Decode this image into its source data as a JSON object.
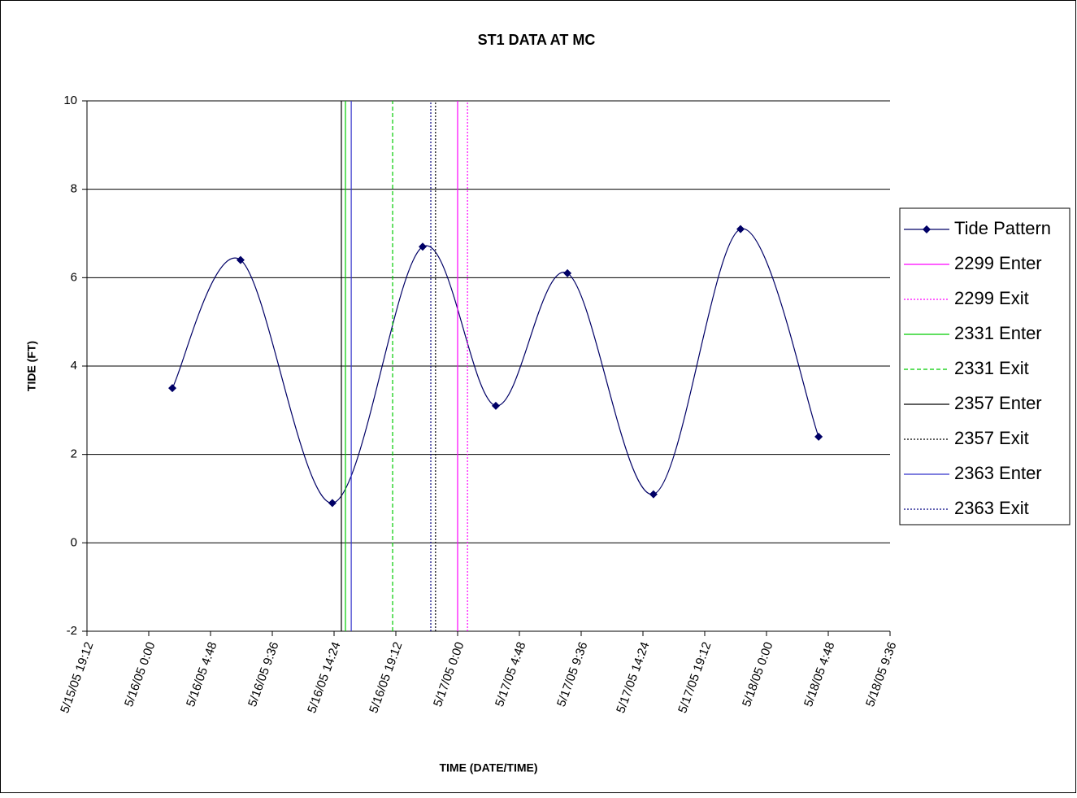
{
  "chart_data": {
    "type": "line",
    "title": "ST1 DATA AT MC",
    "x_label": "TIME (DATE/TIME)",
    "y_label": "TIDE (FT)",
    "xlim": [
      "5/15/05 19:12",
      "5/18/05 9:36"
    ],
    "xticks": [
      "5/15/05 19:12",
      "5/16/05 0:00",
      "5/16/05 4:48",
      "5/16/05 9:36",
      "5/16/05 14:24",
      "5/16/05 19:12",
      "5/17/05 0:00",
      "5/17/05 4:48",
      "5/17/05 9:36",
      "5/17/05 14:24",
      "5/17/05 19:12",
      "5/18/05 0:00",
      "5/18/05 4:48",
      "5/18/05 9:36"
    ],
    "ylim": [
      -2,
      10
    ],
    "yticks": [
      -2,
      0,
      2,
      4,
      6,
      8,
      10
    ],
    "grid": true,
    "series": [
      {
        "name": "Tide Pattern",
        "color": "#000066",
        "dash": "solid",
        "marker": "diamond",
        "smooth": true,
        "x": [
          "5/16/05 1:50",
          "5/16/05 7:08",
          "5/16/05 14:16",
          "5/16/05 21:17",
          "5/17/05 2:58",
          "5/17/05 8:32",
          "5/17/05 15:13",
          "5/17/05 21:59",
          "5/18/05 4:03"
        ],
        "values": [
          3.5,
          6.4,
          0.9,
          6.7,
          3.1,
          6.1,
          1.1,
          7.1,
          2.4
        ]
      },
      {
        "name": "2299 Enter",
        "color": "#ff00ff",
        "dash": "solid",
        "x": [
          "5/17/05 0:00",
          "5/17/05 0:00"
        ],
        "values": [
          -2,
          10
        ]
      },
      {
        "name": "2299 Exit",
        "color": "#ff00ff",
        "dash": "dotted",
        "x": [
          "5/17/05 0:46",
          "5/17/05 0:46"
        ],
        "values": [
          -2,
          10
        ]
      },
      {
        "name": "2331 Enter",
        "color": "#00cc00",
        "dash": "solid",
        "x": [
          "5/16/05 15:17",
          "5/16/05 15:17"
        ],
        "values": [
          -2,
          10
        ]
      },
      {
        "name": "2331 Exit",
        "color": "#00cc00",
        "dash": "dashed",
        "x": [
          "5/16/05 18:57",
          "5/16/05 18:57"
        ],
        "values": [
          -2,
          10
        ]
      },
      {
        "name": "2357 Enter",
        "color": "#000000",
        "dash": "solid",
        "x": [
          "5/16/05 14:58",
          "5/16/05 14:58"
        ],
        "values": [
          -2,
          10
        ]
      },
      {
        "name": "2357 Exit",
        "color": "#000000",
        "dash": "dotted",
        "x": [
          "5/16/05 22:17",
          "5/16/05 22:17"
        ],
        "values": [
          -2,
          10
        ]
      },
      {
        "name": "2363 Enter",
        "color": "#3333cc",
        "dash": "solid",
        "x": [
          "5/16/05 15:44",
          "5/16/05 15:44"
        ],
        "values": [
          -2,
          10
        ]
      },
      {
        "name": "2363 Exit",
        "color": "#000080",
        "dash": "dotted",
        "x": [
          "5/16/05 21:55",
          "5/16/05 21:55"
        ],
        "values": [
          -2,
          10
        ]
      }
    ]
  }
}
